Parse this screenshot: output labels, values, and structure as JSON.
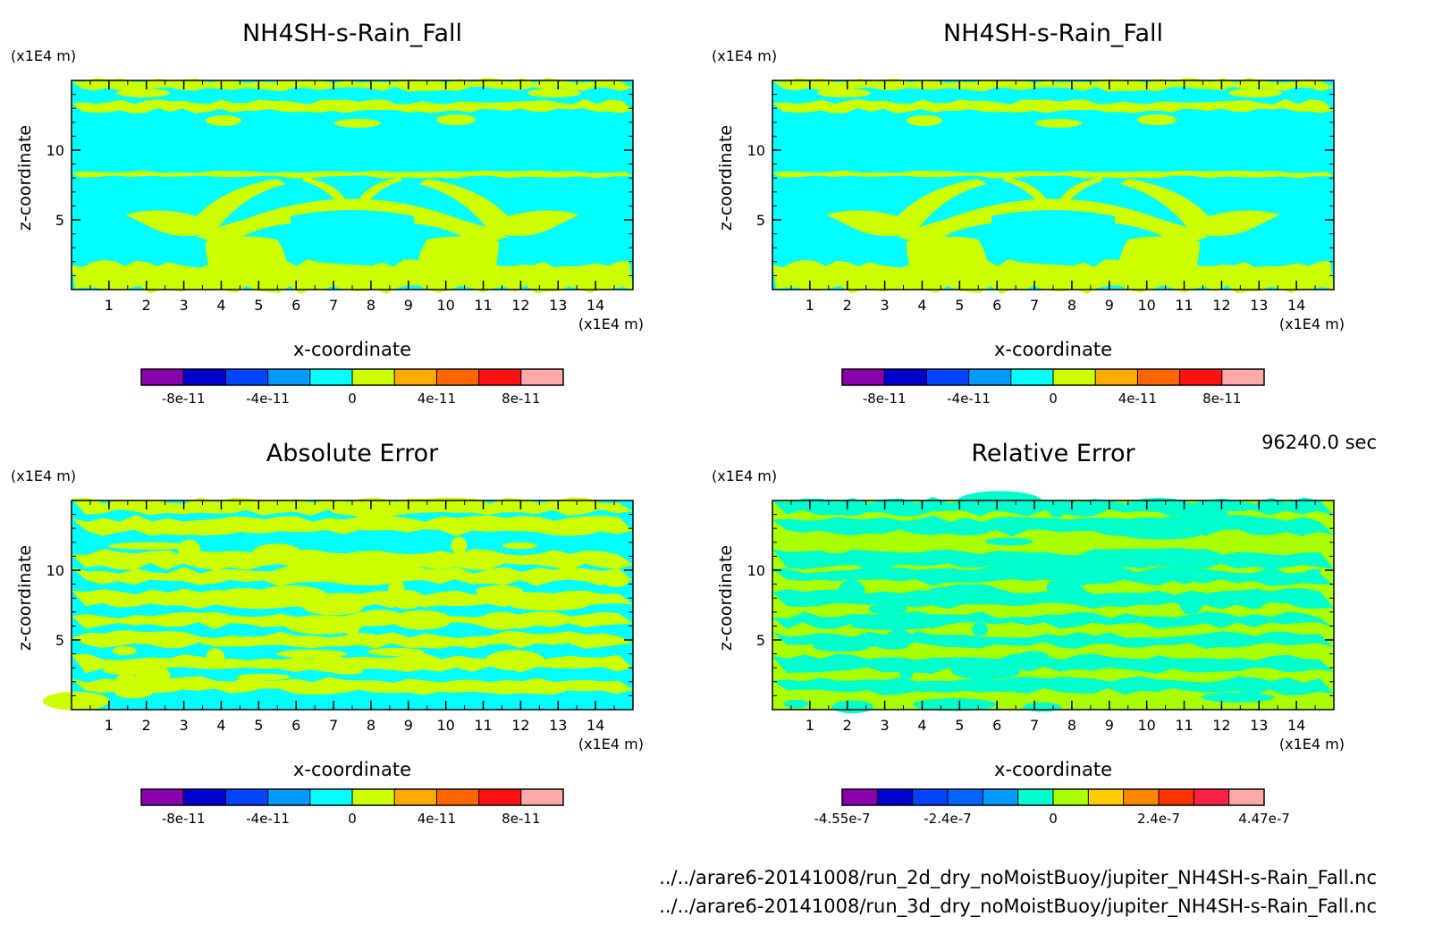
{
  "time_label": "96240.0 sec",
  "files": [
    "../../arare6-20141008/run_2d_dry_noMoistBuoy/jupiter_NH4SH-s-Rain_Fall.nc",
    "../../arare6-20141008/run_3d_dry_noMoistBuoy/jupiter_NH4SH-s-Rain_Fall.nc"
  ],
  "colors": {
    "cyan": "#00ffff",
    "yellowgreen": "#ccff00",
    "green": "#aaff00",
    "teal": "#00ffcc",
    "frame": "#000000"
  },
  "chart_data": [
    {
      "type": "heatmap",
      "title": "NH4SH-s-Rain_Fall",
      "xlabel": "x-coordinate",
      "ylabel": "z-coordinate",
      "x_unit": "(x1E4 m)",
      "y_unit": "(x1E4 m)",
      "xlim": [
        0,
        15
      ],
      "ylim": [
        0,
        15
      ],
      "xticks": [
        1,
        2,
        3,
        4,
        5,
        6,
        7,
        8,
        9,
        10,
        11,
        12,
        13,
        14
      ],
      "yticks": [
        5,
        10
      ],
      "colorbar": {
        "levels": [
          "-8e-11",
          "-4e-11",
          "0",
          "4e-11",
          "8e-11"
        ],
        "colors": [
          "#8800aa",
          "#0000cc",
          "#0044ff",
          "#0099ff",
          "#00ffff",
          "#ccff00",
          "#ffaa00",
          "#ff6600",
          "#ff1111",
          "#ffaaaa"
        ]
      }
    },
    {
      "type": "heatmap",
      "title": "NH4SH-s-Rain_Fall",
      "xlabel": "x-coordinate",
      "ylabel": "z-coordinate",
      "x_unit": "(x1E4 m)",
      "y_unit": "(x1E4 m)",
      "xlim": [
        0,
        15
      ],
      "ylim": [
        0,
        15
      ],
      "xticks": [
        1,
        2,
        3,
        4,
        5,
        6,
        7,
        8,
        9,
        10,
        11,
        12,
        13,
        14
      ],
      "yticks": [
        5,
        10
      ],
      "colorbar": {
        "levels": [
          "-8e-11",
          "-4e-11",
          "0",
          "4e-11",
          "8e-11"
        ],
        "colors": [
          "#8800aa",
          "#0000cc",
          "#0044ff",
          "#0099ff",
          "#00ffff",
          "#ccff00",
          "#ffaa00",
          "#ff6600",
          "#ff1111",
          "#ffaaaa"
        ]
      }
    },
    {
      "type": "heatmap",
      "title": "Absolute Error",
      "xlabel": "x-coordinate",
      "ylabel": "z-coordinate",
      "x_unit": "(x1E4 m)",
      "y_unit": "(x1E4 m)",
      "xlim": [
        0,
        15
      ],
      "ylim": [
        0,
        15
      ],
      "xticks": [
        1,
        2,
        3,
        4,
        5,
        6,
        7,
        8,
        9,
        10,
        11,
        12,
        13,
        14
      ],
      "yticks": [
        5,
        10
      ],
      "colorbar": {
        "levels": [
          "-8e-11",
          "-4e-11",
          "0",
          "4e-11",
          "8e-11"
        ],
        "colors": [
          "#8800aa",
          "#0000cc",
          "#0044ff",
          "#0099ff",
          "#00ffff",
          "#ccff00",
          "#ffaa00",
          "#ff6600",
          "#ff1111",
          "#ffaaaa"
        ]
      }
    },
    {
      "type": "heatmap",
      "title": "Relative Error",
      "xlabel": "x-coordinate",
      "ylabel": "z-coordinate",
      "x_unit": "(x1E4 m)",
      "y_unit": "(x1E4 m)",
      "xlim": [
        0,
        15
      ],
      "ylim": [
        0,
        15
      ],
      "xticks": [
        1,
        2,
        3,
        4,
        5,
        6,
        7,
        8,
        9,
        10,
        11,
        12,
        13,
        14
      ],
      "yticks": [
        5,
        10
      ],
      "colorbar": {
        "levels": [
          "-4.55e-7",
          "-2.4e-7",
          "0",
          "2.4e-7",
          "4.47e-7"
        ],
        "colors": [
          "#8800aa",
          "#0000cc",
          "#0044ff",
          "#0066ff",
          "#0099ff",
          "#00ffcc",
          "#aaff00",
          "#ffcc00",
          "#ff8800",
          "#ff3300",
          "#ff2244",
          "#ffaaaa"
        ]
      }
    }
  ]
}
